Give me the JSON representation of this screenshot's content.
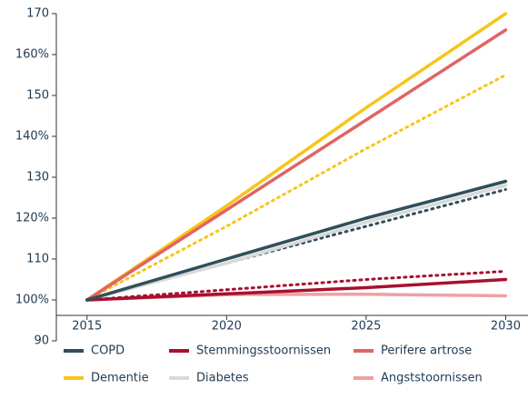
{
  "chart_data": {
    "type": "line",
    "x": [
      2015,
      2020,
      2025,
      2030
    ],
    "xlim": [
      2013.9,
      2030.8
    ],
    "xticks": [
      2015,
      2020,
      2025,
      2030
    ],
    "ylim": [
      90,
      170
    ],
    "yticks": [
      90,
      {
        "value": 100,
        "label": "100%"
      },
      110,
      {
        "value": 120,
        "label": "120%"
      },
      130,
      {
        "value": 140,
        "label": "140%"
      },
      150,
      {
        "value": 160,
        "label": "160%"
      },
      170
    ],
    "grid": false,
    "series": [
      {
        "name": "COPD",
        "color": "#2f4f5c",
        "values": [
          100,
          110,
          120,
          129
        ]
      },
      {
        "name": "Stemmingsstoornissen",
        "color": "#a8102f",
        "values": [
          100,
          101.5,
          103,
          105
        ]
      },
      {
        "name": "Perifere artrose",
        "color": "#e06464",
        "values": [
          100,
          122,
          144,
          166
        ]
      },
      {
        "name": "Dementie",
        "color": "#f7c51a",
        "values": [
          100,
          123,
          147,
          170
        ]
      },
      {
        "name": "Diabetes",
        "color": "#d9d9d9",
        "values": [
          100,
          109,
          119,
          128
        ]
      },
      {
        "name": "Angststoornissen",
        "color": "#f0a0a0",
        "values": [
          100,
          101.3,
          101.4,
          101
        ]
      },
      {
        "color": "#f7c51a",
        "dash": "dotted",
        "values": [
          100,
          118,
          137,
          155
        ]
      },
      {
        "color": "#2f4f5c",
        "dash": "dotted",
        "values": [
          100,
          109,
          118,
          127
        ]
      },
      {
        "color": "#a8102f",
        "dash": "dotted",
        "values": [
          100,
          102.5,
          105,
          107
        ]
      }
    ]
  }
}
